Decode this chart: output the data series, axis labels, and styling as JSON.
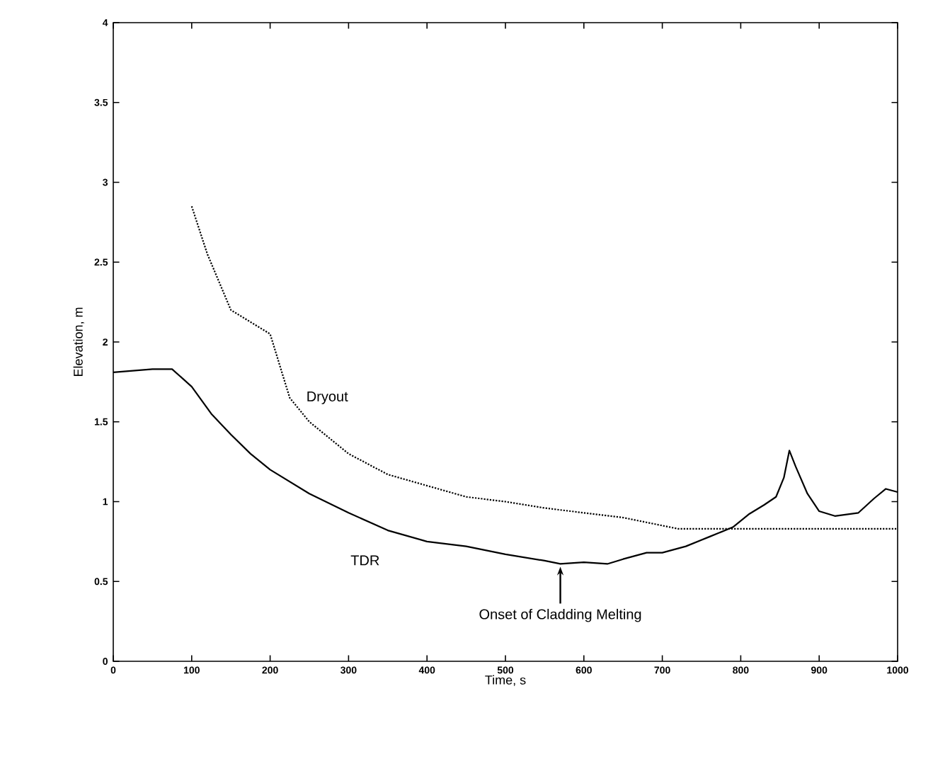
{
  "chart_data": {
    "type": "line",
    "xlabel": "Time, s",
    "ylabel": "Elevation, m",
    "xlim": [
      0,
      1000
    ],
    "ylim": [
      0,
      4
    ],
    "xticks": [
      0,
      100,
      200,
      300,
      400,
      500,
      600,
      700,
      800,
      900,
      1000
    ],
    "yticks": [
      0,
      0.5,
      1,
      1.5,
      2,
      2.5,
      3,
      3.5,
      4
    ],
    "grid": false,
    "legend": false,
    "annotations": [
      {
        "text": "Onset of Cladding Melting",
        "x": 570,
        "y": 0.61
      }
    ],
    "series": [
      {
        "name": "TDR",
        "color": "#000000",
        "line_style": "solid",
        "x": [
          0,
          50,
          75,
          100,
          125,
          150,
          175,
          200,
          250,
          300,
          350,
          400,
          450,
          500,
          550,
          570,
          600,
          630,
          650,
          680,
          700,
          730,
          760,
          790,
          810,
          830,
          845,
          855,
          862,
          870,
          885,
          900,
          920,
          950,
          970,
          985,
          1000
        ],
        "values": [
          1.81,
          1.83,
          1.83,
          1.72,
          1.55,
          1.42,
          1.3,
          1.2,
          1.05,
          0.93,
          0.82,
          0.75,
          0.72,
          0.67,
          0.63,
          0.61,
          0.62,
          0.61,
          0.64,
          0.68,
          0.68,
          0.72,
          0.78,
          0.84,
          0.92,
          0.98,
          1.03,
          1.15,
          1.32,
          1.22,
          1.05,
          0.94,
          0.91,
          0.93,
          1.02,
          1.08,
          1.06
        ]
      },
      {
        "name": "Dryout",
        "color": "#000000",
        "line_style": "dotted",
        "x": [
          100,
          120,
          150,
          200,
          225,
          250,
          300,
          350,
          400,
          450,
          500,
          550,
          600,
          650,
          700,
          720,
          1000
        ],
        "values": [
          2.85,
          2.55,
          2.2,
          2.05,
          1.65,
          1.5,
          1.3,
          1.17,
          1.1,
          1.03,
          1.0,
          0.96,
          0.93,
          0.9,
          0.85,
          0.83,
          0.83
        ]
      }
    ]
  }
}
